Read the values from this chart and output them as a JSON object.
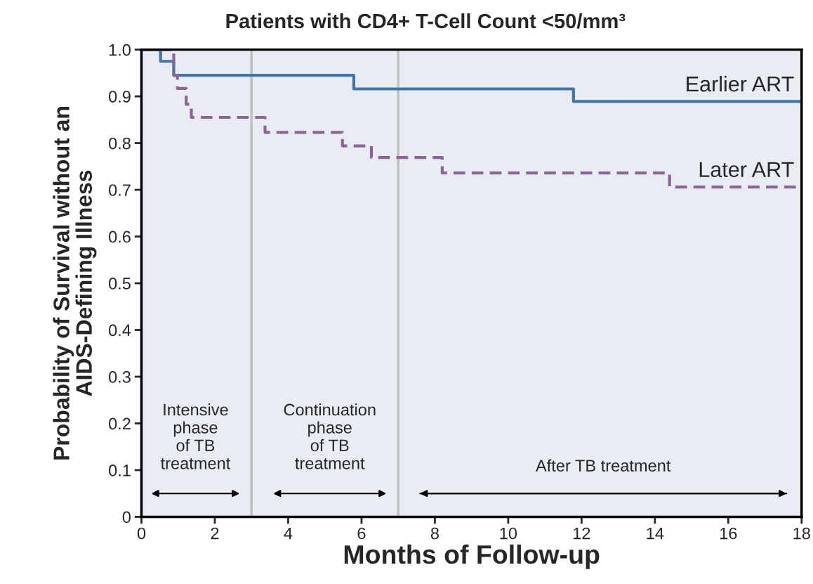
{
  "chart_data": {
    "type": "step",
    "title": "Patients with CD4+ T-Cell Count <50/mm³",
    "xlabel": "Months of Follow-up",
    "ylabel": "Probability of Survival without an\nAIDS-Defining Illness",
    "series": [
      {
        "name": "Earlier ART",
        "color": "#3f77a8",
        "line_style": "solid",
        "x": [
          0,
          0.52,
          0.88,
          5.79,
          11.78,
          18
        ],
        "values": [
          1.0,
          0.975,
          0.945,
          0.916,
          0.889,
          0.889
        ]
      },
      {
        "name": "Later ART",
        "color": "#8a6596",
        "line_style": "dashed",
        "x": [
          0,
          0.88,
          0.98,
          1.22,
          1.36,
          3.37,
          5.48,
          6.27,
          8.2,
          14.4,
          18
        ],
        "values": [
          1.0,
          0.945,
          0.917,
          0.883,
          0.855,
          0.823,
          0.794,
          0.769,
          0.736,
          0.706,
          0.706
        ]
      }
    ],
    "ref_lines": [
      {
        "axis": "x",
        "value": 3,
        "color": "#c0c0c0"
      },
      {
        "axis": "x",
        "value": 7,
        "color": "#c0c0c0"
      }
    ],
    "annotations": [
      "Intensive\nphase\nof TB\ntreatment",
      "Continuation\nphase\nof TB\ntreatment",
      "After TB treatment"
    ],
    "xlim": [
      0,
      18
    ],
    "xticks": [
      0,
      2,
      4,
      6,
      8,
      10,
      12,
      14,
      16,
      18
    ],
    "ylim": [
      0,
      1.0
    ],
    "yticks": [
      0,
      0.1,
      0.2,
      0.3,
      0.4,
      0.5,
      0.6,
      0.7,
      0.8,
      0.9,
      {
        "value": 1.0,
        "label": "1.0"
      }
    ],
    "grid": false,
    "legend": false
  }
}
